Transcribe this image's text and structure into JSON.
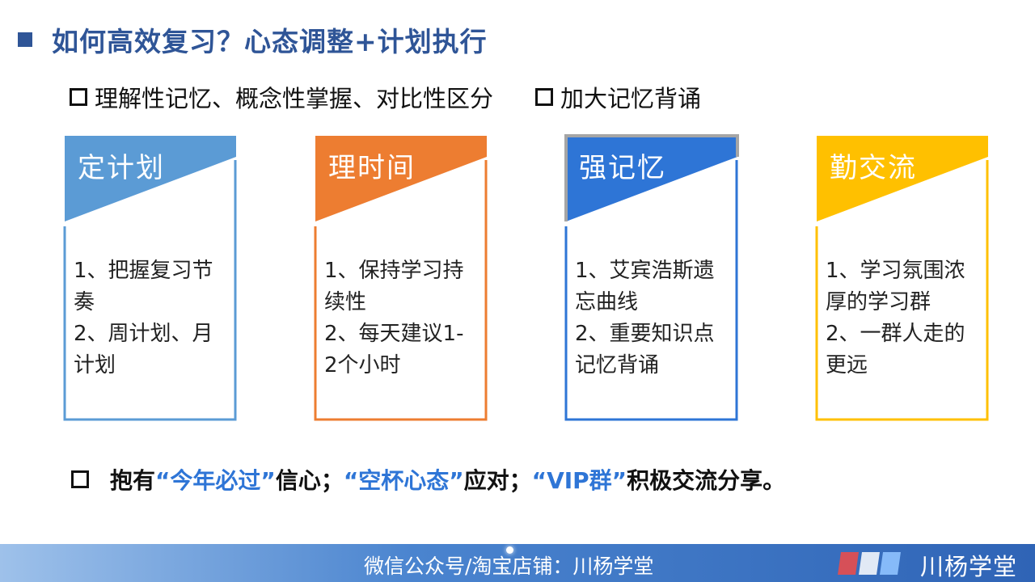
{
  "header": {
    "title": "如何高效复习？心态调整+计划执行"
  },
  "bullets": [
    {
      "text": "理解性记忆、概念性掌握、对比性区分"
    },
    {
      "text": "加大记忆背诵"
    }
  ],
  "cards": [
    {
      "title": "定计划",
      "color": "#5b9bd5",
      "lines": [
        "1、把握复习节",
        "奏",
        "2、周计划、月",
        "计划"
      ]
    },
    {
      "title": "理时间",
      "color": "#ed7d31",
      "lines": [
        "1、保持学习持",
        "续性",
        "2、每天建议1-",
        "2个小时"
      ]
    },
    {
      "title": "强记忆",
      "color": "#2e75d6",
      "lines": [
        "1、艾宾浩斯遗",
        "忘曲线",
        "2、重要知识点",
        "记忆背诵"
      ]
    },
    {
      "title": "勤交流",
      "color": "#ffc000",
      "lines": [
        "1、学习氛围浓",
        "厚的学习群",
        "2、一群人走的",
        "更远"
      ]
    }
  ],
  "bottom": {
    "p1": "抱有",
    "h1": "“今年必过”",
    "p2": "信心；",
    "h2": "“空杯心态”",
    "p3": "应对；",
    "h3": "“VIP群”",
    "p4": "积极交流分享。"
  },
  "footer": {
    "text": "微信公众号/淘宝店铺：川杨学堂",
    "logo_text": "川杨学堂"
  }
}
